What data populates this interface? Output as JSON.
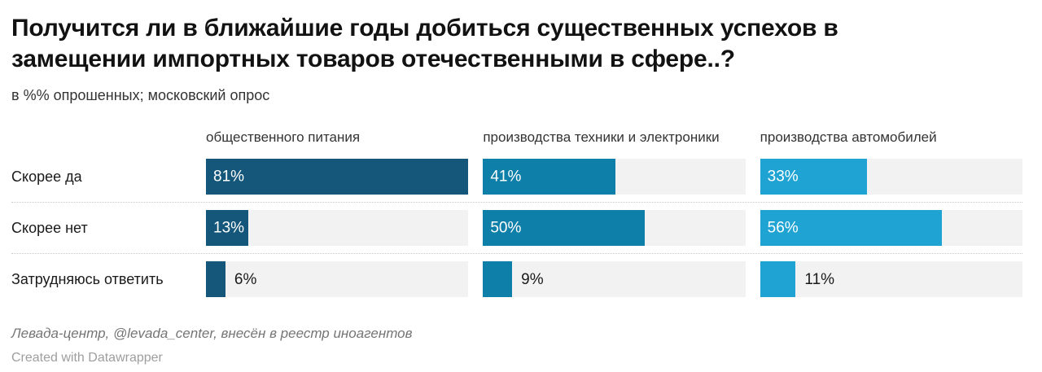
{
  "header": {
    "title": "Получится ли в ближайшие годы добиться существенных успехов в замещении импортных товаров отечественными в сфере..?",
    "subtitle": "в %% опрошенных; московский опрос"
  },
  "chart_data": {
    "type": "bar",
    "orientation": "horizontal",
    "categories": [
      "Скорее да",
      "Скорее нет",
      "Затрудняюсь ответить"
    ],
    "series": [
      {
        "name": "общественного питания",
        "color": "#14577a",
        "values": [
          81,
          13,
          6
        ]
      },
      {
        "name": "производства техники и электроники",
        "color": "#0e7fa9",
        "values": [
          41,
          50,
          9
        ]
      },
      {
        "name": "производства автомобилей",
        "color": "#1ea3d2",
        "values": [
          33,
          56,
          11
        ]
      }
    ],
    "value_suffix": "%",
    "scale_max": 81,
    "xlim": [
      0,
      81
    ],
    "track_color": "#f2f2f2",
    "grid": false,
    "legend_position": "column-headers",
    "value_labels": "inside-start, outside for small bars"
  },
  "footer": {
    "source": "Левада-центр, @levada_center, внесён в реестр иноагентов",
    "attribution": "Created with Datawrapper"
  }
}
